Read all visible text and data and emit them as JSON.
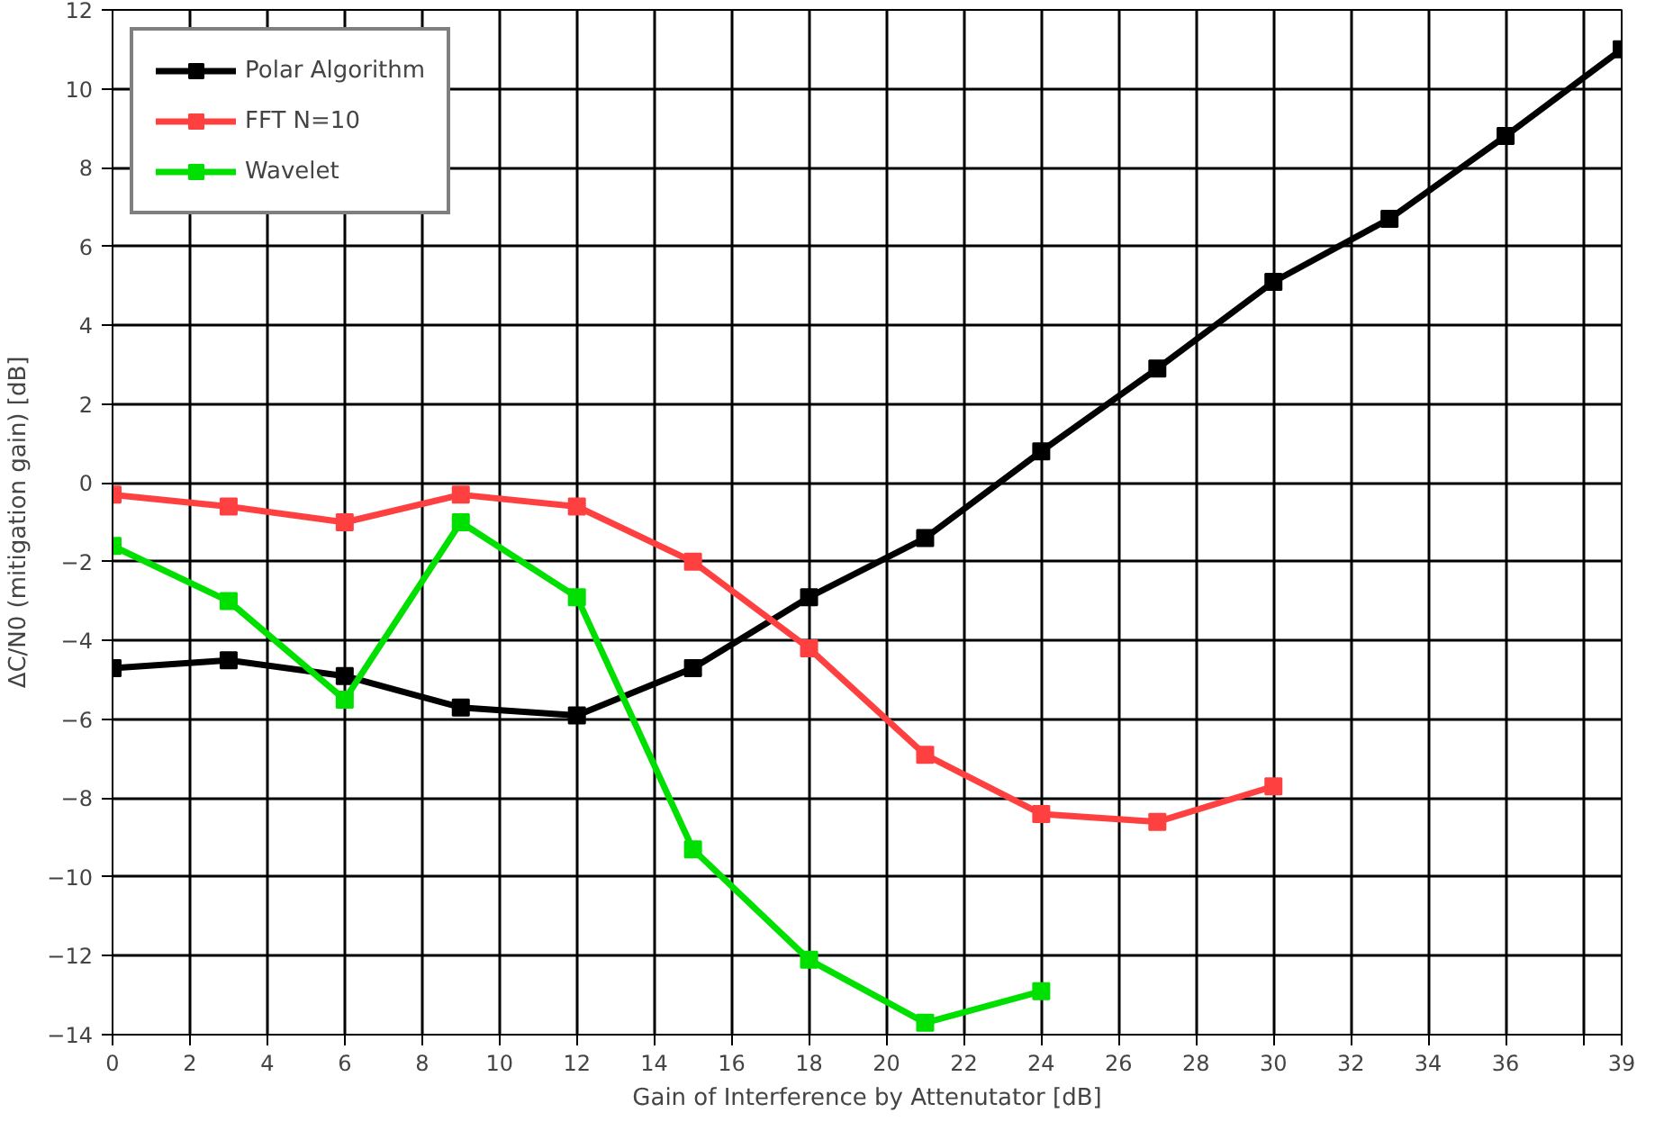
{
  "chart_data": {
    "type": "line",
    "xlabel": "Gain of Interference by Attenutator [dB]",
    "ylabel": "ΔC/N0 (mitigation gain) [dB]",
    "xlim": [
      0,
      39
    ],
    "ylim": [
      -14,
      12
    ],
    "xticks": [
      0,
      2,
      4,
      6,
      8,
      10,
      12,
      14,
      16,
      18,
      20,
      22,
      24,
      26,
      28,
      30,
      32,
      34,
      36,
      {
        "value": 38,
        "label": null
      },
      39
    ],
    "yticks": [
      -14,
      -12,
      -10,
      -8,
      -6,
      -4,
      -2,
      0,
      2,
      4,
      6,
      8,
      10,
      12
    ],
    "grid": true,
    "legend": "top left",
    "marker": "square",
    "line_style": "solid",
    "series": [
      {
        "name": "Polar Algorithm",
        "color": "#000000",
        "x": [
          0,
          3,
          6,
          9,
          12,
          15,
          18,
          21,
          24,
          27,
          30,
          33,
          36,
          39
        ],
        "values": [
          -4.7,
          -4.5,
          -4.9,
          -5.7,
          -5.9,
          -4.7,
          -2.9,
          -1.4,
          0.8,
          2.9,
          5.1,
          6.7,
          8.8,
          11.0
        ]
      },
      {
        "name": "FFT N=10",
        "color": "#ff4040",
        "x": [
          0,
          3,
          6,
          9,
          12,
          15,
          18,
          21,
          24,
          27,
          30
        ],
        "values": [
          -0.3,
          -0.6,
          -1.0,
          -0.3,
          -0.6,
          -2.0,
          -4.2,
          -6.9,
          -8.4,
          -8.6,
          -7.7
        ]
      },
      {
        "name": "Wavelet",
        "color": "#00e000",
        "x": [
          0,
          3,
          6,
          9,
          12,
          15,
          18,
          21,
          24
        ],
        "values": [
          -1.6,
          -3.0,
          -5.5,
          -1.0,
          -2.9,
          -9.3,
          -12.1,
          -13.7,
          -12.9
        ]
      }
    ]
  }
}
